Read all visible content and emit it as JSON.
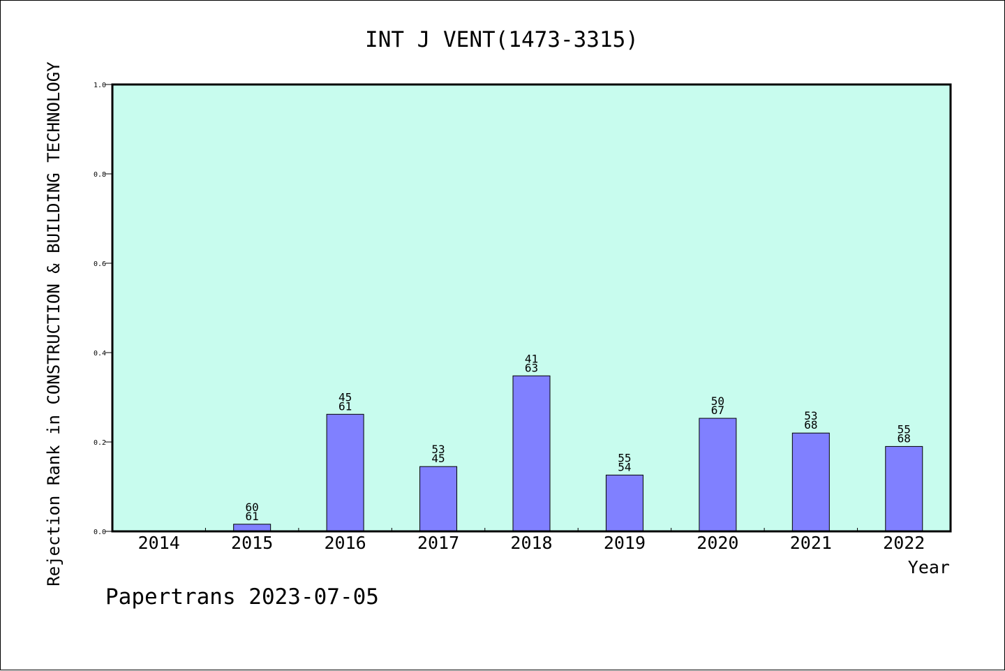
{
  "chart_data": {
    "type": "bar",
    "title": "INT J VENT(1473-3315)",
    "xlabel": "Year",
    "ylabel": "Rejection Rank in CONSTRUCTION & BUILDING TECHNOLOGY",
    "ylim": [
      0.0,
      1.0
    ],
    "yticks": [
      "0.0",
      "0.2",
      "0.4",
      "0.6",
      "0.8",
      "1.0"
    ],
    "categories": [
      "2014",
      "2015",
      "2016",
      "2017",
      "2018",
      "2019",
      "2020",
      "2021",
      "2022"
    ],
    "values": [
      null,
      0.016,
      0.262,
      0.145,
      0.348,
      0.126,
      0.253,
      0.22,
      0.19
    ],
    "labels_top": [
      null,
      "60",
      "45",
      "53",
      "41",
      "55",
      "50",
      "53",
      "55"
    ],
    "labels_bottom": [
      null,
      "61",
      "61",
      "45",
      "63",
      "54",
      "67",
      "68",
      "68"
    ],
    "grid": false,
    "plot_background": "#c8fcee",
    "bar_color": "#8080ff"
  },
  "footer": "Papertrans 2023-07-05"
}
